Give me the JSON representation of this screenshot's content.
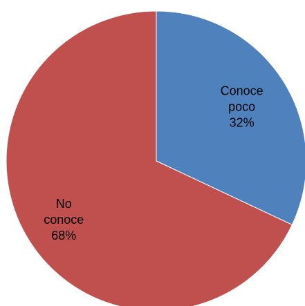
{
  "chart_data": {
    "type": "pie",
    "title": "",
    "legend": "none",
    "slices": [
      {
        "name": "Conoce poco",
        "label_lines": [
          "Conoce",
          "poco",
          "32%"
        ],
        "value": 32,
        "color": "#4F81BD"
      },
      {
        "name": "No conoce",
        "label_lines": [
          "No",
          "conoce",
          "68%"
        ],
        "value": 68,
        "color": "#C0504D"
      }
    ]
  }
}
